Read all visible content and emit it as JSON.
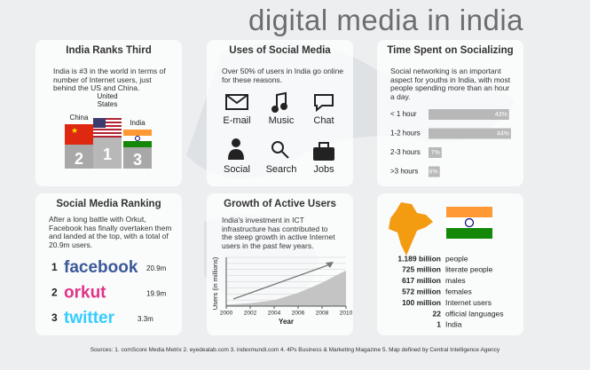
{
  "title": "digital media in india",
  "rank": {
    "title": "India Ranks Third",
    "text": "India is #3 in the world in terms of number of Internet users, just behind the US and China.",
    "podium": [
      {
        "country": "China",
        "rank": 2
      },
      {
        "country": "United States",
        "rank": 1
      },
      {
        "country": "India",
        "rank": 3
      }
    ]
  },
  "uses": {
    "title": "Uses of Social Media",
    "text": "Over 50% of users in India go online for these reasons.",
    "items": [
      "E-mail",
      "Music",
      "Chat",
      "Social",
      "Search",
      "Jobs"
    ]
  },
  "time": {
    "title": "Time Spent on Socializing",
    "text": "Social networking is an important aspect for youths in India, with most people spending more than an hour a day.",
    "chart_data": {
      "type": "bar",
      "categories": [
        "< 1 hour",
        "1-2 hours",
        "2-3 hours",
        ">3 hours"
      ],
      "values": [
        43,
        44,
        7,
        6
      ],
      "value_labels": [
        "43%",
        "44%",
        "7%",
        "6%"
      ],
      "xlim": [
        0,
        45
      ],
      "color": "#b8b8b8"
    }
  },
  "ranking": {
    "title": "Social Media Ranking",
    "text": "After a long battle with Orkut, Facebook has finally overtaken them and landed at the top, with a total of 20.9m users.",
    "rows": [
      {
        "rank": 1,
        "name": "facebook",
        "users": "20.9m",
        "color": "#3b5998"
      },
      {
        "rank": 2,
        "name": "orkut",
        "users": "19.9m",
        "color": "#e0338a"
      },
      {
        "rank": 3,
        "name": "twitter",
        "users": "3.3m",
        "color": "#33ccff"
      }
    ]
  },
  "growth": {
    "title": "Growth of Active Users",
    "text": "India's investment in ICT infrastructure has contributed to the steep growth in active Internet users in the past few years.",
    "chart_data": {
      "type": "area",
      "x": [
        2000,
        2002,
        2004,
        2006,
        2008,
        2010
      ],
      "values": [
        3,
        6,
        12,
        27,
        48,
        73
      ],
      "xlim": [
        2000,
        2010
      ],
      "xticks": [
        2000,
        2002,
        2004,
        2006,
        2008,
        2010
      ],
      "ylim": [
        0,
        100
      ],
      "y_label": "Users (in millions)",
      "x_label": "Year",
      "color": "#c4c4c4"
    }
  },
  "facts": {
    "rows": [
      [
        "1.189 billion",
        "people"
      ],
      [
        "725 million",
        "literate people"
      ],
      [
        "617 million",
        "males"
      ],
      [
        "572 million",
        "females"
      ],
      [
        "100 million",
        "Internet users"
      ],
      [
        "22",
        "official languages"
      ],
      [
        "1",
        "India"
      ]
    ]
  },
  "sources": "Sources: 1. comScore Media Metrix  2. eyedealab.com  3. indexmundi.com  4. 4Ps Business & Marketing Magazine  5. Map defined by Central Intelligence Agency"
}
